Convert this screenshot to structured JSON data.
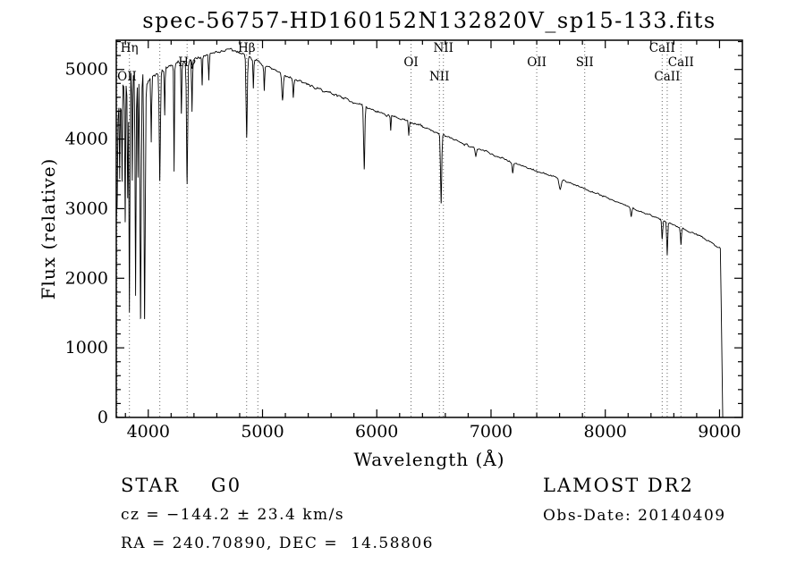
{
  "title": "spec-56757-HD160152N132820V_sp15-133.fits",
  "footer": {
    "class_label": "STAR    G0",
    "survey": "LAMOST DR2",
    "cz": "cz = −144.2 ± 23.4 km/s",
    "obs_date": "Obs-Date: 20140409",
    "coords": "RA = 240.70890, DEC =  14.58806"
  },
  "chart_data": {
    "type": "line",
    "title": "spec-56757-HD160152N132820V_sp15-133.fits",
    "xlabel": "Wavelength (Å)",
    "ylabel": "Flux (relative)",
    "xlim": [
      3720,
      9200
    ],
    "ylim": [
      0,
      5420
    ],
    "x_major_ticks": [
      4000,
      5000,
      6000,
      7000,
      8000,
      9000
    ],
    "x_minor_step": 200,
    "y_major_ticks": [
      0,
      1000,
      2000,
      3000,
      4000,
      5000
    ],
    "y_minor_step": 200,
    "grid": false,
    "legend": "none",
    "line_color": "#000000",
    "marker_line_color": "#666666",
    "series": [
      {
        "name": "flux"
      }
    ],
    "continuum_points": [
      [
        3720,
        3300
      ],
      [
        3735,
        4450
      ],
      [
        3760,
        4650
      ],
      [
        3800,
        4720
      ],
      [
        3850,
        4760
      ],
      [
        3900,
        4800
      ],
      [
        3950,
        4820
      ],
      [
        4000,
        4850
      ],
      [
        4100,
        4950
      ],
      [
        4200,
        5050
      ],
      [
        4300,
        5100
      ],
      [
        4400,
        5150
      ],
      [
        4500,
        5200
      ],
      [
        4600,
        5250
      ],
      [
        4700,
        5280
      ],
      [
        4800,
        5250
      ],
      [
        4900,
        5160
      ],
      [
        5000,
        5060
      ],
      [
        5100,
        4990
      ],
      [
        5200,
        4910
      ],
      [
        5300,
        4850
      ],
      [
        5400,
        4780
      ],
      [
        5500,
        4710
      ],
      [
        5600,
        4660
      ],
      [
        5700,
        4600
      ],
      [
        5800,
        4530
      ],
      [
        5900,
        4460
      ],
      [
        6000,
        4400
      ],
      [
        6100,
        4340
      ],
      [
        6200,
        4290
      ],
      [
        6300,
        4240
      ],
      [
        6400,
        4180
      ],
      [
        6500,
        4110
      ],
      [
        6600,
        4040
      ],
      [
        6700,
        3980
      ],
      [
        6800,
        3910
      ],
      [
        6900,
        3850
      ],
      [
        7000,
        3790
      ],
      [
        7200,
        3660
      ],
      [
        7400,
        3540
      ],
      [
        7600,
        3430
      ],
      [
        7800,
        3300
      ],
      [
        8000,
        3170
      ],
      [
        8200,
        3030
      ],
      [
        8400,
        2900
      ],
      [
        8600,
        2770
      ],
      [
        8800,
        2630
      ],
      [
        9000,
        2440
      ],
      [
        9035,
        2400
      ]
    ],
    "absorption_lines": [
      [
        3727,
        4,
        3000
      ],
      [
        3750,
        3,
        3500
      ],
      [
        3771,
        3,
        3400
      ],
      [
        3798,
        3,
        2900
      ],
      [
        3820,
        3,
        3200
      ],
      [
        3835,
        4,
        1500
      ],
      [
        3860,
        3,
        3400
      ],
      [
        3889,
        4,
        1950
      ],
      [
        3910,
        3,
        3300
      ],
      [
        3933,
        5,
        1250
      ],
      [
        3968,
        5,
        1480
      ],
      [
        4026,
        3,
        3950
      ],
      [
        4101,
        5,
        3380
      ],
      [
        4144,
        3,
        4350
      ],
      [
        4226,
        3,
        3550
      ],
      [
        4290,
        3,
        4350
      ],
      [
        4340,
        5,
        3360
      ],
      [
        4383,
        3,
        4400
      ],
      [
        4472,
        3,
        4750
      ],
      [
        4530,
        3,
        4850
      ],
      [
        4861,
        5,
        4020
      ],
      [
        4920,
        3,
        4750
      ],
      [
        5015,
        3,
        4700
      ],
      [
        5175,
        6,
        4550
      ],
      [
        5270,
        4,
        4600
      ],
      [
        5890,
        5,
        3560
      ],
      [
        6122,
        3,
        4120
      ],
      [
        6280,
        3,
        4050
      ],
      [
        6563,
        5,
        3060
      ],
      [
        6867,
        6,
        3750
      ],
      [
        7190,
        5,
        3520
      ],
      [
        7605,
        9,
        3280
      ],
      [
        8227,
        5,
        2880
      ],
      [
        8498,
        4,
        2560
      ],
      [
        8542,
        4,
        2330
      ],
      [
        8662,
        4,
        2490
      ]
    ],
    "noise_bands": [
      [
        3990,
        380
      ],
      [
        4400,
        75
      ],
      [
        5000,
        55
      ],
      [
        7000,
        40
      ],
      [
        99999,
        28
      ]
    ],
    "red_cutoff": {
      "start": 9008,
      "end": 9028
    },
    "annotations": [
      {
        "label": "Hη",
        "wavelength": 3835,
        "row": 0
      },
      {
        "label": "OII",
        "wavelength": 3727,
        "row": 2
      },
      {
        "label": "Hγ",
        "wavelength": 4340,
        "row": 1
      },
      {
        "label": "Hβ",
        "wavelength": 4861,
        "row": 0
      },
      {
        "label": "OI",
        "wavelength": 6300,
        "row": 1
      },
      {
        "label": "NII",
        "wavelength": 6583,
        "row": 0
      },
      {
        "label": "NII",
        "wavelength": 6548,
        "row": 2
      },
      {
        "label": "OII",
        "wavelength": 7400,
        "row": 1
      },
      {
        "label": "SII",
        "wavelength": 7820,
        "row": 1
      },
      {
        "label": "CaII",
        "wavelength": 8498,
        "row": 0
      },
      {
        "label": "CaII",
        "wavelength": 8662,
        "row": 1
      },
      {
        "label": "CaII",
        "wavelength": 8542,
        "row": 2
      }
    ],
    "extra_dotted_lines": [
      4101,
      4959
    ]
  }
}
